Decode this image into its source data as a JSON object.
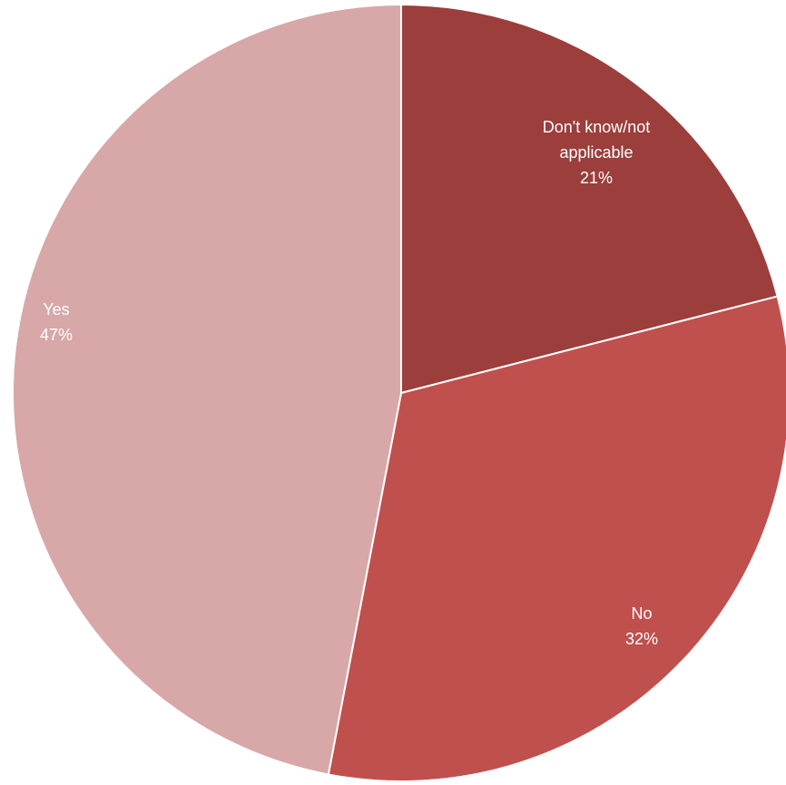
{
  "chart_data": {
    "type": "pie",
    "title": "",
    "categories": [
      "Don't know/not applicable",
      "No",
      "Yes"
    ],
    "values": [
      21,
      32,
      47
    ],
    "colors": [
      "#9B3E3C",
      "#C0504D",
      "#D8A7A7"
    ],
    "data_labels": [
      {
        "lines": [
          "Don't know/not",
          "applicable",
          "21%"
        ]
      },
      {
        "lines": [
          "No",
          "32%"
        ]
      },
      {
        "lines": [
          "Yes",
          "47%"
        ]
      }
    ],
    "start_angle": "12 o'clock",
    "direction": "clockwise",
    "legend": "none"
  }
}
